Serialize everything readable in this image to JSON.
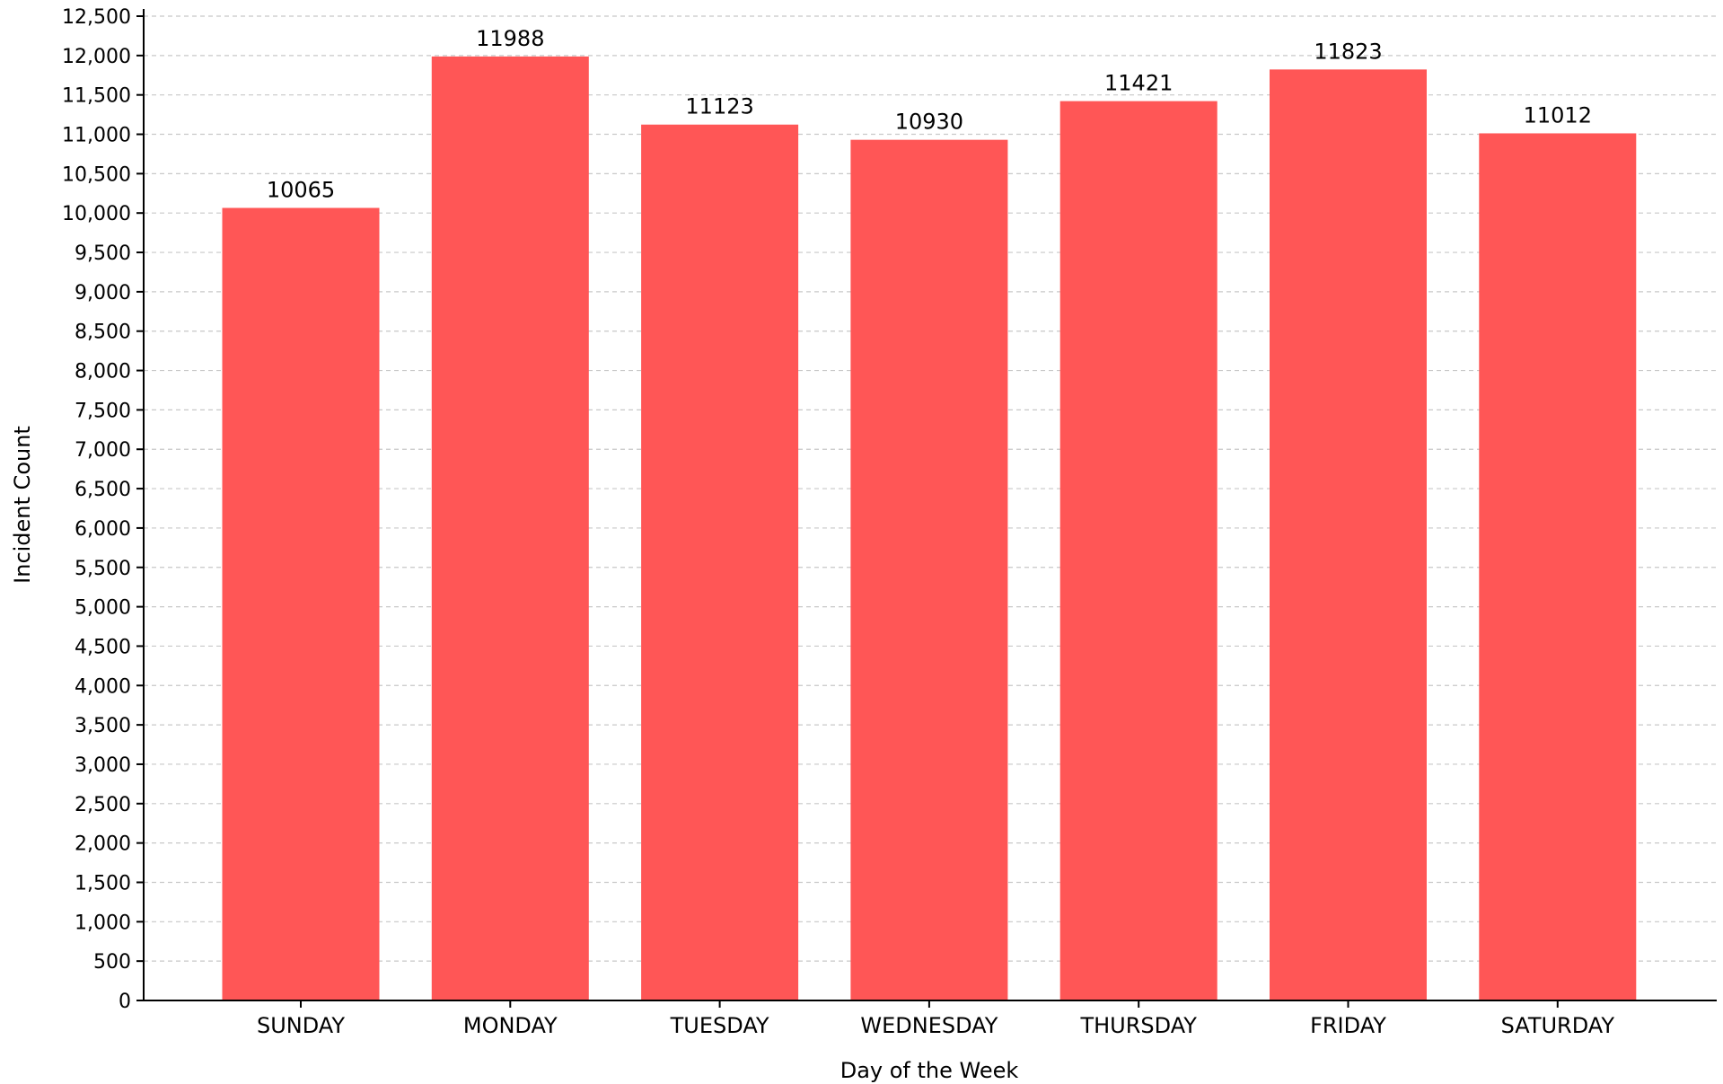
{
  "chart_data": {
    "type": "bar",
    "categories": [
      "SUNDAY",
      "MONDAY",
      "TUESDAY",
      "WEDNESDAY",
      "THURSDAY",
      "FRIDAY",
      "SATURDAY"
    ],
    "values": [
      10065,
      11988,
      11123,
      10930,
      11421,
      11823,
      11012
    ],
    "data_labels": [
      "10065",
      "11988",
      "11123",
      "10930",
      "11421",
      "11823",
      "11012"
    ],
    "xlabel": "Day of the Week",
    "ylabel": "Incident Count",
    "ylim": [
      0,
      12500
    ],
    "yticks": [
      0,
      500,
      1000,
      1500,
      2000,
      2500,
      3000,
      3500,
      4000,
      4500,
      5000,
      5500,
      6000,
      6500,
      7000,
      7500,
      8000,
      8500,
      9000,
      9500,
      10000,
      10500,
      11000,
      11500,
      12000,
      12500
    ],
    "ytick_labels": [
      "0",
      "500",
      "1,000",
      "1,500",
      "2,000",
      "2,500",
      "3,000",
      "3,500",
      "4,000",
      "4,500",
      "5,000",
      "5,500",
      "6,000",
      "6,500",
      "7,000",
      "7,500",
      "8,000",
      "8,500",
      "9,000",
      "9,500",
      "10,000",
      "10,500",
      "11,000",
      "11,500",
      "12,000",
      "12,500"
    ],
    "grid": true,
    "legend": "none",
    "bar_color": "#ff5656"
  }
}
